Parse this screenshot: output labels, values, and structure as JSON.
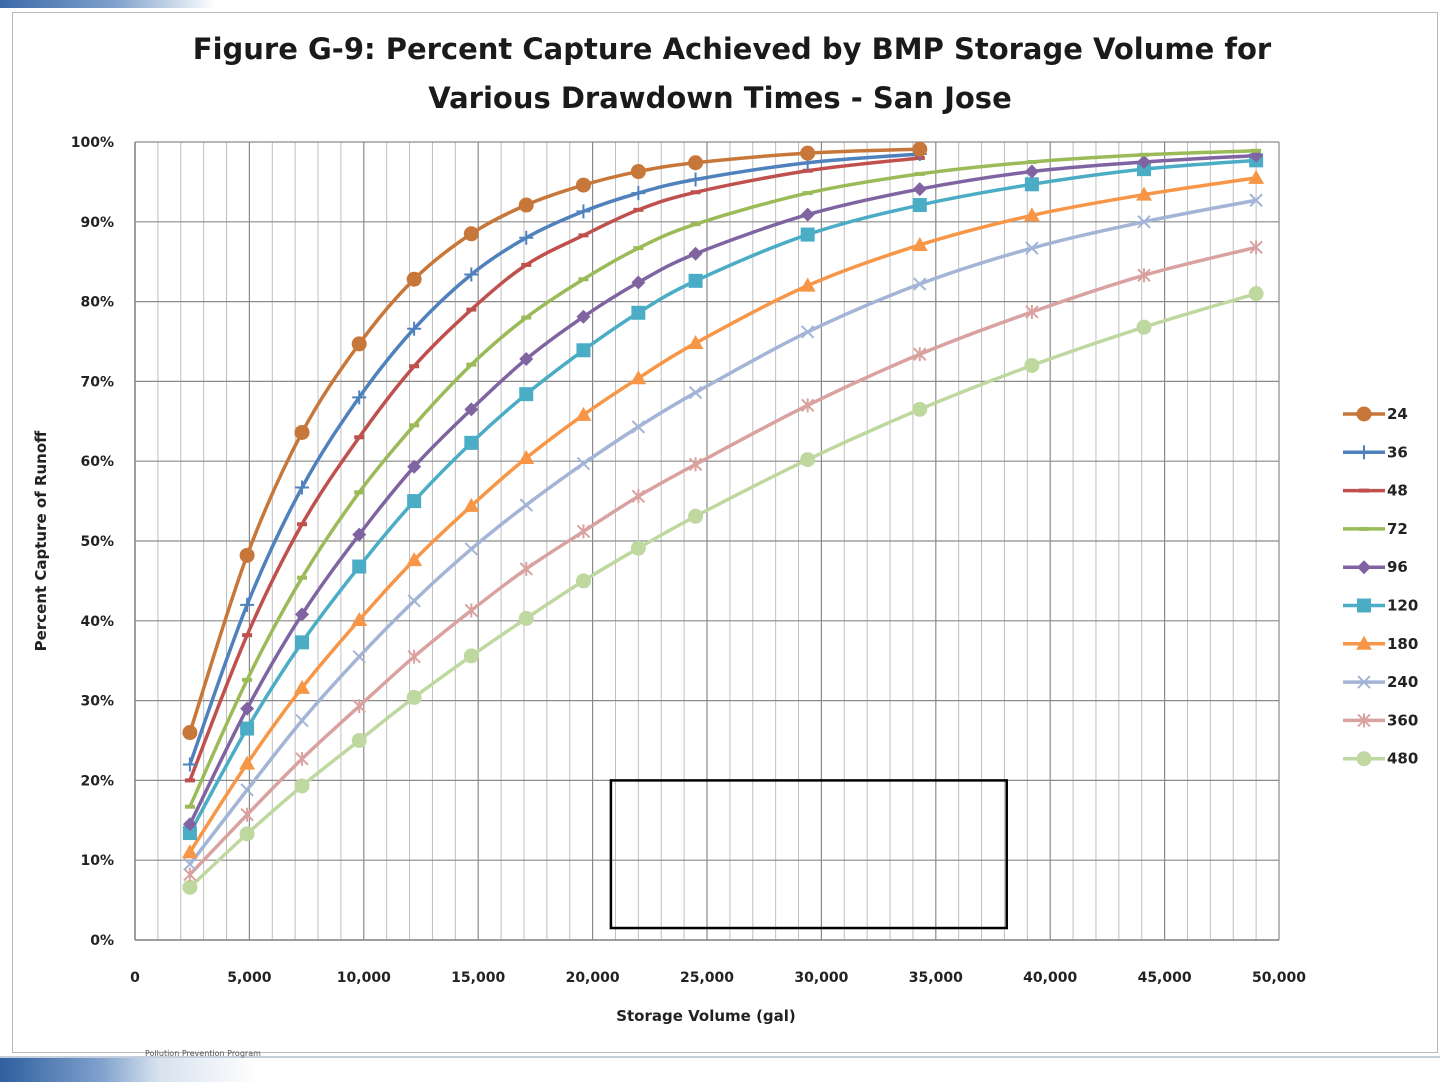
{
  "footer": {
    "text": "Pollution Prevention Program"
  },
  "chart_data": {
    "type": "line",
    "title": "Figure G-9:   Percent Capture Achieved by BMP Storage Volume for",
    "subtitle": "Various Drawdown Times - San Jose",
    "xlabel": "Storage Volume (gal)",
    "ylabel": "Percent Capture of Runoff",
    "xlim": [
      0,
      50000
    ],
    "ylim": [
      0,
      100
    ],
    "x_ticks": [
      "0",
      "5,000",
      "10,000",
      "15,000",
      "20,000",
      "25,000",
      "30,000",
      "35,000",
      "40,000",
      "45,000",
      "50,000"
    ],
    "y_ticks": [
      "0%",
      "10%",
      "20%",
      "30%",
      "40%",
      "50%",
      "60%",
      "70%",
      "80%",
      "90%",
      "100%"
    ],
    "grid": true,
    "legend_position": "right",
    "series": [
      {
        "name": "24",
        "color": "#c8773a",
        "marker": "circle",
        "points": [
          [
            2400,
            26
          ],
          [
            4900,
            48.2
          ],
          [
            7300,
            63.6
          ],
          [
            9800,
            74.7
          ],
          [
            12200,
            82.8
          ],
          [
            14700,
            88.5
          ],
          [
            17100,
            92.1
          ],
          [
            19600,
            94.6
          ],
          [
            22000,
            96.3
          ],
          [
            24500,
            97.4
          ],
          [
            29400,
            98.6
          ],
          [
            34300,
            99.1
          ]
        ]
      },
      {
        "name": "36",
        "color": "#4f81bd",
        "marker": "plus",
        "points": [
          [
            2400,
            22
          ],
          [
            4900,
            42
          ],
          [
            7300,
            56.7
          ],
          [
            9800,
            68
          ],
          [
            12200,
            76.6
          ],
          [
            14700,
            83.4
          ],
          [
            17100,
            88
          ],
          [
            19600,
            91.3
          ],
          [
            22000,
            93.6
          ],
          [
            24500,
            95.3
          ],
          [
            29400,
            97.4
          ],
          [
            34300,
            98.5
          ]
        ]
      },
      {
        "name": "48",
        "color": "#c0504d",
        "marker": "dash",
        "points": [
          [
            2400,
            20
          ],
          [
            4900,
            38.2
          ],
          [
            7300,
            52.1
          ],
          [
            9800,
            63
          ],
          [
            12200,
            71.9
          ],
          [
            14700,
            79
          ],
          [
            17100,
            84.6
          ],
          [
            19600,
            88.3
          ],
          [
            22000,
            91.5
          ],
          [
            24500,
            93.7
          ],
          [
            29400,
            96.4
          ],
          [
            34300,
            98
          ]
        ]
      },
      {
        "name": "72",
        "color": "#9bbb59",
        "marker": "dash",
        "points": [
          [
            2400,
            16.7
          ],
          [
            4900,
            32.6
          ],
          [
            7300,
            45.4
          ],
          [
            9800,
            56.1
          ],
          [
            12200,
            64.5
          ],
          [
            14700,
            72.1
          ],
          [
            17100,
            78
          ],
          [
            19600,
            82.8
          ],
          [
            22000,
            86.7
          ],
          [
            24500,
            89.7
          ],
          [
            29400,
            93.6
          ],
          [
            34300,
            96
          ],
          [
            39200,
            97.5
          ],
          [
            44100,
            98.4
          ],
          [
            49000,
            98.9
          ]
        ]
      },
      {
        "name": "96",
        "color": "#8064a2",
        "marker": "diamond",
        "points": [
          [
            2400,
            14.5
          ],
          [
            4900,
            29
          ],
          [
            7300,
            40.8
          ],
          [
            9800,
            50.8
          ],
          [
            12200,
            59.3
          ],
          [
            14700,
            66.5
          ],
          [
            17100,
            72.8
          ],
          [
            19600,
            78.1
          ],
          [
            22000,
            82.4
          ],
          [
            24500,
            86
          ],
          [
            29400,
            90.9
          ],
          [
            34300,
            94.1
          ],
          [
            39200,
            96.3
          ],
          [
            44100,
            97.5
          ],
          [
            49000,
            98.3
          ]
        ]
      },
      {
        "name": "120",
        "color": "#4bacc6",
        "marker": "square",
        "points": [
          [
            2400,
            13.4
          ],
          [
            4900,
            26.5
          ],
          [
            7300,
            37.3
          ],
          [
            9800,
            46.8
          ],
          [
            12200,
            55
          ],
          [
            14700,
            62.3
          ],
          [
            17100,
            68.4
          ],
          [
            19600,
            73.9
          ],
          [
            22000,
            78.6
          ],
          [
            24500,
            82.6
          ],
          [
            29400,
            88.4
          ],
          [
            34300,
            92.1
          ],
          [
            39200,
            94.7
          ],
          [
            44100,
            96.6
          ],
          [
            49000,
            97.7
          ]
        ]
      },
      {
        "name": "180",
        "color": "#f79646",
        "marker": "triangle",
        "points": [
          [
            2400,
            11
          ],
          [
            4900,
            22.1
          ],
          [
            7300,
            31.6
          ],
          [
            9800,
            40.1
          ],
          [
            12200,
            47.6
          ],
          [
            14700,
            54.4
          ],
          [
            17100,
            60.4
          ],
          [
            19600,
            65.8
          ],
          [
            22000,
            70.4
          ],
          [
            24500,
            74.8
          ],
          [
            29400,
            82
          ],
          [
            34300,
            87.1
          ],
          [
            39200,
            90.8
          ],
          [
            44100,
            93.4
          ],
          [
            49000,
            95.5
          ]
        ]
      },
      {
        "name": "240",
        "color": "#a3b4d6",
        "marker": "x",
        "points": [
          [
            2400,
            9.5
          ],
          [
            4900,
            18.8
          ],
          [
            7300,
            27.5
          ],
          [
            9800,
            35.5
          ],
          [
            12200,
            42.5
          ],
          [
            14700,
            49
          ],
          [
            17100,
            54.5
          ],
          [
            19600,
            59.7
          ],
          [
            22000,
            64.3
          ],
          [
            24500,
            68.6
          ],
          [
            29400,
            76.2
          ],
          [
            34300,
            82.2
          ],
          [
            39200,
            86.7
          ],
          [
            44100,
            90
          ],
          [
            49000,
            92.7
          ]
        ]
      },
      {
        "name": "360",
        "color": "#d9a2a0",
        "marker": "star",
        "points": [
          [
            2400,
            8.2
          ],
          [
            4900,
            15.7
          ],
          [
            7300,
            22.7
          ],
          [
            9800,
            29.3
          ],
          [
            12200,
            35.5
          ],
          [
            14700,
            41.3
          ],
          [
            17100,
            46.5
          ],
          [
            19600,
            51.2
          ],
          [
            22000,
            55.6
          ],
          [
            24500,
            59.6
          ],
          [
            29400,
            67
          ],
          [
            34300,
            73.4
          ],
          [
            39200,
            78.7
          ],
          [
            44100,
            83.3
          ],
          [
            49000,
            86.8
          ]
        ]
      },
      {
        "name": "480",
        "color": "#bfd8a0",
        "marker": "circle",
        "points": [
          [
            2400,
            6.6
          ],
          [
            4900,
            13.3
          ],
          [
            7300,
            19.3
          ],
          [
            9800,
            25
          ],
          [
            12200,
            30.4
          ],
          [
            14700,
            35.6
          ],
          [
            17100,
            40.3
          ],
          [
            19600,
            45
          ],
          [
            22000,
            49.1
          ],
          [
            24500,
            53.1
          ],
          [
            29400,
            60.2
          ],
          [
            34300,
            66.5
          ],
          [
            39200,
            72
          ],
          [
            44100,
            76.8
          ],
          [
            49000,
            81
          ]
        ]
      }
    ],
    "annotation_box": {
      "x": [
        20800,
        38100
      ],
      "y": [
        1.5,
        20
      ]
    }
  }
}
